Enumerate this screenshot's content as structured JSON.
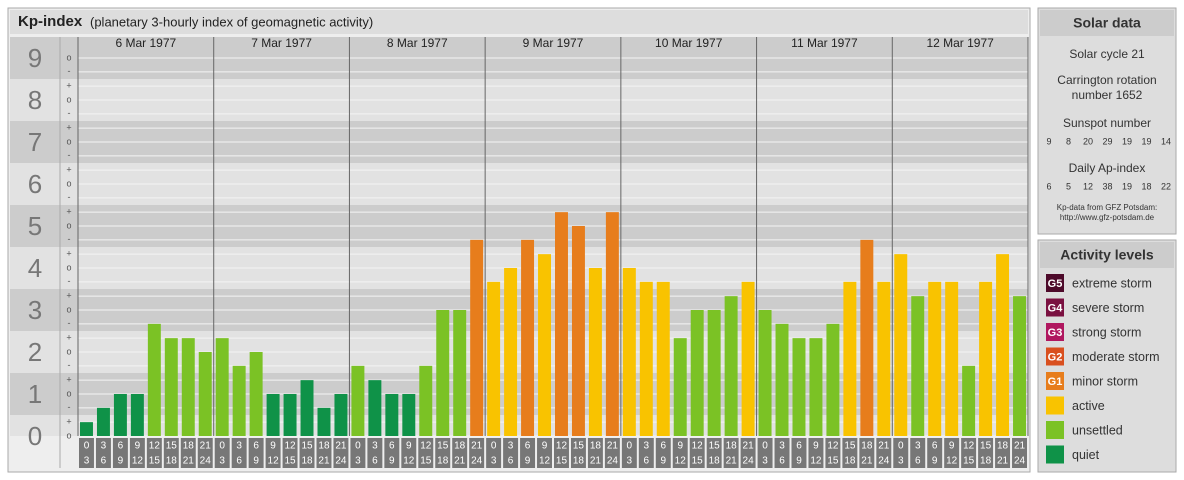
{
  "chart_data": {
    "type": "bar",
    "title": "Kp-index",
    "subtitle": "(planetary 3-hourly index of geomagnetic activity)",
    "days": [
      "6 Mar 1977",
      "7 Mar 1977",
      "8 Mar 1977",
      "9 Mar 1977",
      "10 Mar 1977",
      "11 Mar 1977",
      "12 Mar 1977"
    ],
    "hours_from": [
      "0",
      "3",
      "6",
      "9",
      "12",
      "15",
      "18",
      "21"
    ],
    "hours_to": [
      "3",
      "6",
      "9",
      "12",
      "15",
      "18",
      "21",
      "24"
    ],
    "values": [
      0.33,
      0.67,
      1,
      1,
      2.67,
      2.33,
      2.33,
      2,
      2.33,
      1.67,
      2,
      1,
      1,
      1.33,
      0.67,
      1,
      1.67,
      1.33,
      1,
      1,
      1.67,
      3,
      3,
      4.67,
      3.67,
      4,
      4.67,
      4.33,
      5.33,
      5,
      4,
      5.33,
      4,
      3.67,
      3.67,
      2.33,
      3,
      3,
      3.33,
      3.67,
      3,
      2.67,
      2.33,
      2.33,
      2.67,
      3.67,
      4.67,
      3.67,
      4.33,
      3.33,
      3.67,
      3.67,
      1.67,
      3.67,
      4.33,
      3.33
    ],
    "colors": [
      "#0f9248",
      "#0f9248",
      "#0f9248",
      "#0f9248",
      "#7bc225",
      "#7bc225",
      "#7bc225",
      "#7bc225",
      "#7bc225",
      "#7bc225",
      "#7bc225",
      "#0f9248",
      "#0f9248",
      "#0f9248",
      "#0f9248",
      "#0f9248",
      "#7bc225",
      "#0f9248",
      "#0f9248",
      "#0f9248",
      "#7bc225",
      "#7bc225",
      "#7bc225",
      "#e77d1c",
      "#f9c300",
      "#f9c300",
      "#e77d1c",
      "#f9c300",
      "#e77d1c",
      "#e77d1c",
      "#f9c300",
      "#e77d1c",
      "#f9c300",
      "#f9c300",
      "#f9c300",
      "#7bc225",
      "#7bc225",
      "#7bc225",
      "#7bc225",
      "#f9c300",
      "#7bc225",
      "#7bc225",
      "#7bc225",
      "#7bc225",
      "#7bc225",
      "#f9c300",
      "#e77d1c",
      "#f9c300",
      "#f9c300",
      "#7bc225",
      "#f9c300",
      "#f9c300",
      "#7bc225",
      "#f9c300",
      "#f9c300",
      "#7bc225"
    ],
    "ylim": [
      0,
      9.5
    ],
    "yticks": [
      0,
      1,
      2,
      3,
      4,
      5,
      6,
      7,
      8,
      9
    ],
    "minor_ticks": [
      {
        "value": 0,
        "label": "o"
      },
      {
        "value": 0.33,
        "label": "+"
      },
      {
        "value": 0.67,
        "label": "-"
      },
      {
        "value": 1,
        "label": "o"
      },
      {
        "value": 1.33,
        "label": "+"
      },
      {
        "value": 1.67,
        "label": "-"
      },
      {
        "value": 2,
        "label": "o"
      },
      {
        "value": 2.33,
        "label": "+"
      },
      {
        "value": 2.67,
        "label": "-"
      },
      {
        "value": 3,
        "label": "o"
      },
      {
        "value": 3.33,
        "label": "+"
      },
      {
        "value": 3.67,
        "label": "-"
      },
      {
        "value": 4,
        "label": "o"
      },
      {
        "value": 4.33,
        "label": "+"
      },
      {
        "value": 4.67,
        "label": "-"
      },
      {
        "value": 5,
        "label": "o"
      },
      {
        "value": 5.33,
        "label": "+"
      },
      {
        "value": 5.67,
        "label": "-"
      },
      {
        "value": 6,
        "label": "o"
      },
      {
        "value": 6.33,
        "label": "+"
      },
      {
        "value": 6.67,
        "label": "-"
      },
      {
        "value": 7,
        "label": "o"
      },
      {
        "value": 7.33,
        "label": "+"
      },
      {
        "value": 7.67,
        "label": "-"
      },
      {
        "value": 8,
        "label": "o"
      },
      {
        "value": 8.33,
        "label": "+"
      },
      {
        "value": 8.67,
        "label": "-"
      },
      {
        "value": 9,
        "label": "o"
      }
    ],
    "grid": true
  },
  "solar": {
    "title": "Solar data",
    "cycle": "Solar cycle 21",
    "carrington": [
      "Carrington rotation",
      "number 1652"
    ],
    "sunspot_title": "Sunspot number",
    "sunspot": [
      9,
      8,
      20,
      29,
      19,
      19,
      14
    ],
    "ap_title": "Daily Ap-index",
    "ap": [
      6,
      5,
      12,
      38,
      19,
      18,
      22
    ],
    "source": [
      "Kp-data from GFZ Potsdam:",
      "http://www.gfz-potsdam.de"
    ]
  },
  "legend": {
    "title": "Activity levels",
    "items": [
      {
        "badge": "G5",
        "label": "extreme storm",
        "color": "#4d0a2a"
      },
      {
        "badge": "G4",
        "label": "severe storm",
        "color": "#7a1040"
      },
      {
        "badge": "G3",
        "label": "strong storm",
        "color": "#b0175f"
      },
      {
        "badge": "G2",
        "label": "moderate storm",
        "color": "#d94f1e"
      },
      {
        "badge": "G1",
        "label": "minor storm",
        "color": "#e77d1c"
      },
      {
        "label": "active",
        "color": "#f9c300"
      },
      {
        "label": "unsettled",
        "color": "#7bc225"
      },
      {
        "label": "quiet",
        "color": "#0f9248"
      }
    ]
  }
}
